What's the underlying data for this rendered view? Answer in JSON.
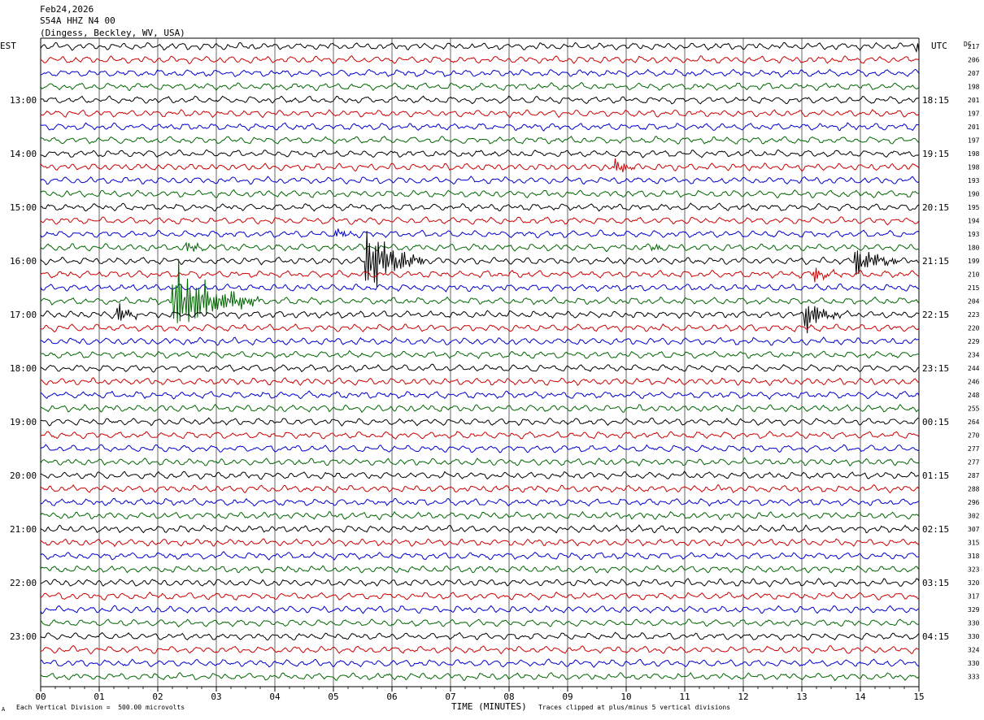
{
  "header": {
    "date": "Feb24,2026",
    "station": "S54A HHZ N4 00",
    "location": "(Dingess, Beckley, WV, USA)"
  },
  "labels": {
    "left_tz": "EST",
    "right_tz": "UTC",
    "dc": "DC"
  },
  "footer": {
    "division": "Each Vertical Division =  500.00 microvolts",
    "axis_title": "TIME (MINUTES)",
    "clip_note": "Traces clipped at plus/minus 5 vertical divisions",
    "mark": "A"
  },
  "chart_data": {
    "type": "line",
    "subtype": "helicorder",
    "x_ticks": [
      "00",
      "01",
      "02",
      "03",
      "04",
      "05",
      "06",
      "07",
      "08",
      "09",
      "10",
      "11",
      "12",
      "13",
      "14",
      "15"
    ],
    "xlim": [
      0,
      15
    ],
    "xlabel": "TIME (MINUTES)",
    "trace_minutes": 15,
    "trace_colors": [
      "#000000",
      "#cc0000",
      "#0000cc",
      "#006600"
    ],
    "est_hours": [
      "13:00",
      "14:00",
      "15:00",
      "16:00",
      "17:00",
      "18:00",
      "19:00",
      "20:00",
      "21:00",
      "22:00",
      "23:00"
    ],
    "utc_hours": [
      "18:15",
      "19:15",
      "20:15",
      "21:15",
      "22:15",
      "23:15",
      "00:15",
      "01:15",
      "02:15",
      "03:15",
      "04:15"
    ],
    "first_labeled_row": 4,
    "dc_offsets": [
      217,
      206,
      207,
      198,
      201,
      197,
      201,
      197,
      198,
      198,
      193,
      190,
      195,
      194,
      193,
      180,
      199,
      210,
      215,
      204,
      223,
      220,
      229,
      234,
      244,
      246,
      248,
      255,
      264,
      270,
      277,
      277,
      287,
      288,
      296,
      302,
      307,
      315,
      318,
      323,
      320,
      317,
      329,
      330,
      330,
      324,
      330,
      333
    ],
    "events": [
      {
        "row": 0,
        "minute": 14.95,
        "amp": 1.4,
        "dur": 0.1
      },
      {
        "row": 9,
        "minute": 9.8,
        "amp": 1.3,
        "dur": 0.15
      },
      {
        "row": 14,
        "minute": 5.05,
        "amp": 0.8,
        "dur": 0.15
      },
      {
        "row": 15,
        "minute": 2.5,
        "amp": 0.9,
        "dur": 0.15
      },
      {
        "row": 15,
        "minute": 10.45,
        "amp": 0.6,
        "dur": 0.1
      },
      {
        "row": 16,
        "minute": 5.55,
        "amp": 5,
        "dur": 0.4
      },
      {
        "row": 16,
        "minute": 13.9,
        "amp": 2.3,
        "dur": 0.3
      },
      {
        "row": 17,
        "minute": 13.2,
        "amp": 1,
        "dur": 0.2
      },
      {
        "row": 19,
        "minute": 2.25,
        "amp": 5,
        "dur": 0.6
      },
      {
        "row": 20,
        "minute": 1.3,
        "amp": 1.5,
        "dur": 0.15
      },
      {
        "row": 20,
        "minute": 13.05,
        "amp": 2.2,
        "dur": 0.25
      }
    ]
  }
}
